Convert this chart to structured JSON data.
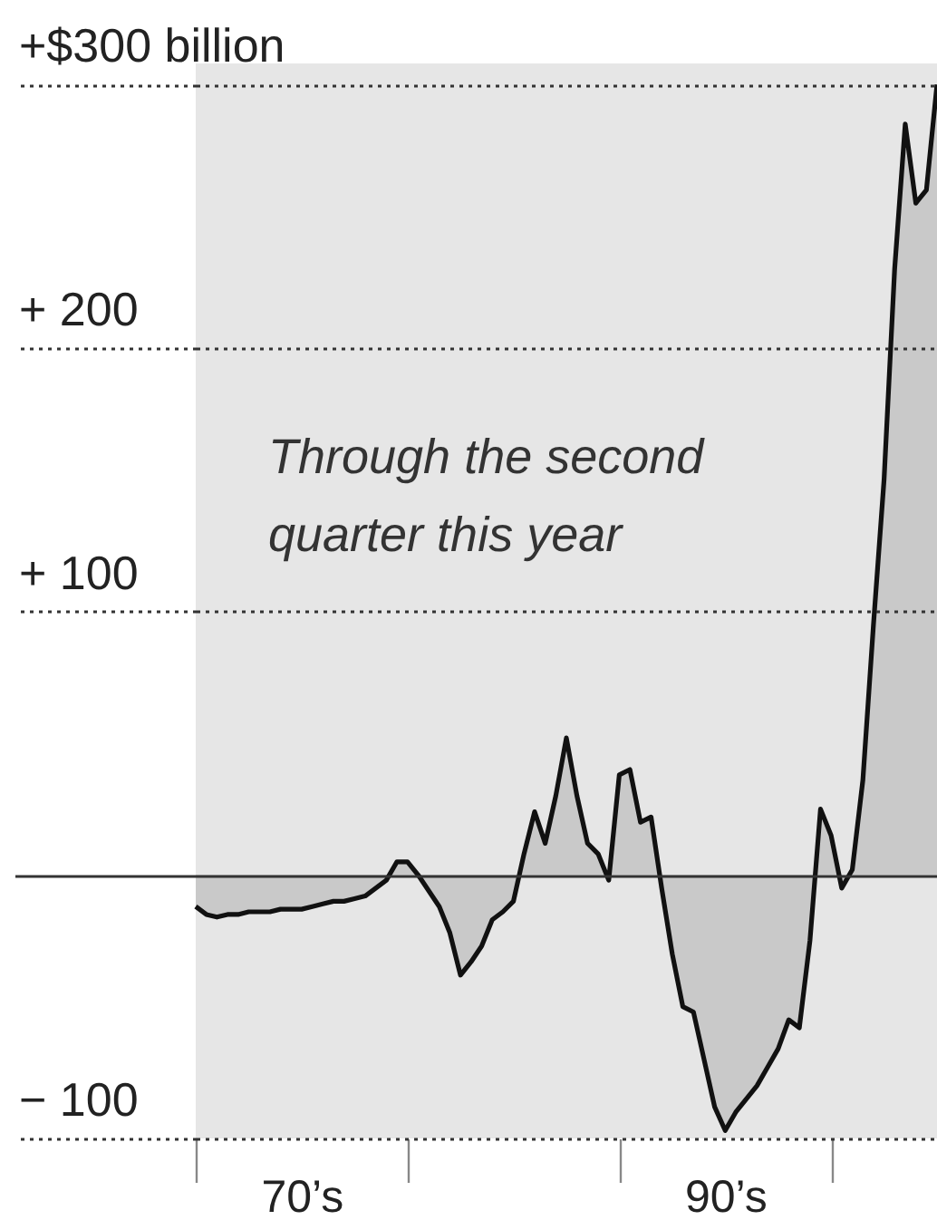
{
  "chart_data": {
    "type": "area",
    "color": "#c9c9c9",
    "annotations": [
      "Through the second quarter this year"
    ],
    "categories": [
      null,
      null,
      null,
      null,
      null,
      null,
      null,
      null,
      null,
      null,
      "70’s",
      null,
      null,
      null,
      null,
      null,
      null,
      null,
      null,
      null,
      null,
      null,
      null,
      null,
      null,
      null,
      null,
      null,
      null,
      null,
      null,
      null,
      null,
      null,
      null,
      null,
      null,
      null,
      null,
      null,
      null,
      null,
      null,
      null,
      null,
      null,
      null,
      null,
      null,
      null,
      "90’s",
      null,
      null,
      null,
      null,
      null,
      null,
      null,
      null,
      null,
      null,
      null,
      null,
      null,
      null,
      null,
      null,
      null,
      null,
      null,
      null
    ],
    "values": [
      -12,
      -15,
      -16,
      -15,
      -15,
      -14,
      -14,
      -14,
      -13,
      -13,
      -13,
      -12,
      -11,
      -10,
      -10,
      -9,
      -8,
      -5,
      -2,
      5,
      5,
      0,
      -6,
      -12,
      -22,
      -38,
      -33,
      -27,
      -17,
      -14,
      -10,
      8,
      24,
      12,
      30,
      52,
      30,
      12,
      8,
      -2,
      38,
      40,
      20,
      22,
      -5,
      -30,
      -50,
      -52,
      -70,
      -88,
      -97,
      -90,
      -85,
      -80,
      -73,
      -66,
      -55,
      -58,
      -25,
      25,
      15,
      -5,
      2,
      36,
      95,
      150,
      230,
      285,
      255,
      260,
      300
    ],
    "ylim": [
      -100,
      308
    ],
    "yticks": [
      {
        "value": -100,
        "label": "− 100"
      },
      {
        "value": 0,
        "label": null
      },
      {
        "value": 100,
        "label": "+  100"
      },
      {
        "value": 200,
        "label": "+  200"
      },
      {
        "value": 300,
        "label": "+$300 billion"
      }
    ],
    "grid": "y"
  }
}
